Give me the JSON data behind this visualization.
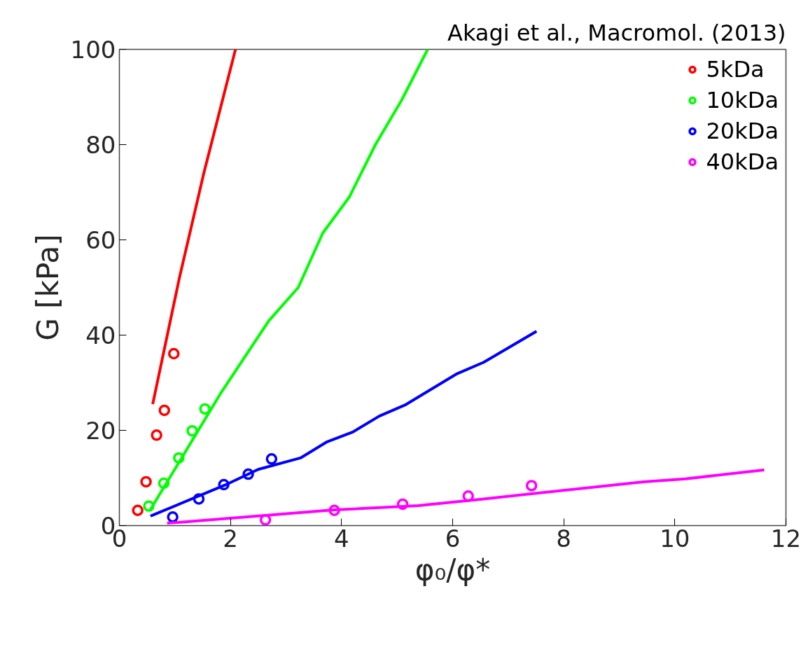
{
  "chart_data": {
    "type": "scatter",
    "annotations": [
      "Akagi et al., Macromol. (2013)"
    ],
    "xlabel": "φ₀/φ*",
    "ylabel": "G [kPa]",
    "xlim": [
      0,
      12
    ],
    "ylim": [
      0,
      100
    ],
    "xticks": [
      0,
      2,
      4,
      6,
      8,
      10,
      12
    ],
    "yticks": [
      0,
      20,
      40,
      60,
      80,
      100
    ],
    "grid": false,
    "legend": "top right",
    "series": [
      {
        "name": "5kDa",
        "color": "#ff0000",
        "marker": "circle",
        "x": [
          0.33,
          0.48,
          0.67,
          0.81,
          0.98
        ],
        "values": [
          3.2,
          9.2,
          19,
          24.2,
          36.1
        ]
      },
      {
        "name": "10kDa",
        "color": "#00ff00",
        "marker": "circle",
        "x": [
          0.53,
          0.8,
          1.07,
          1.31,
          1.54
        ],
        "values": [
          4.1,
          8.9,
          14.2,
          19.9,
          24.5
        ]
      },
      {
        "name": "20kDa",
        "color": "#0000ff",
        "marker": "circle",
        "x": [
          0.96,
          1.43,
          1.88,
          2.32,
          2.74
        ],
        "values": [
          1.8,
          5.6,
          8.6,
          10.8,
          14.0
        ]
      },
      {
        "name": "40kDa",
        "color": "#ff00ff",
        "marker": "circle",
        "x": [
          2.63,
          3.87,
          5.1,
          6.28,
          7.42
        ],
        "values": [
          1.2,
          3.2,
          4.5,
          6.2,
          8.4
        ]
      },
      {
        "color": "#ff0000",
        "type": "line",
        "marker": "none",
        "x": [
          0.6,
          1.08,
          1.52,
          2.09
        ],
        "values": [
          25.5,
          52,
          74,
          100
        ]
      },
      {
        "color": "#00ff00",
        "type": "line",
        "marker": "none",
        "x": [
          0.55,
          1.83,
          2.69,
          3.22,
          3.66,
          4.14,
          4.61,
          5.08,
          5.55
        ],
        "values": [
          3.2,
          27.9,
          43,
          50,
          61.4,
          69,
          80,
          89.3,
          100
        ]
      },
      {
        "color": "#0000ff",
        "type": "line",
        "marker": "none",
        "x": [
          0.56,
          1.9,
          2.5,
          3.26,
          3.74,
          4.21,
          4.68,
          5.14,
          6.08,
          6.56,
          7.51
        ],
        "values": [
          2.0,
          8.5,
          11.8,
          14.2,
          17.6,
          19.7,
          23,
          25.3,
          31.9,
          34.3,
          40.8
        ]
      },
      {
        "color": "#ff00ff",
        "type": "line",
        "marker": "none",
        "x": [
          0.86,
          3.87,
          5.38,
          6.56,
          9.44,
          10.19,
          11.61
        ],
        "values": [
          0.5,
          3.3,
          4.2,
          5.6,
          9.2,
          9.8,
          11.7
        ]
      }
    ]
  }
}
